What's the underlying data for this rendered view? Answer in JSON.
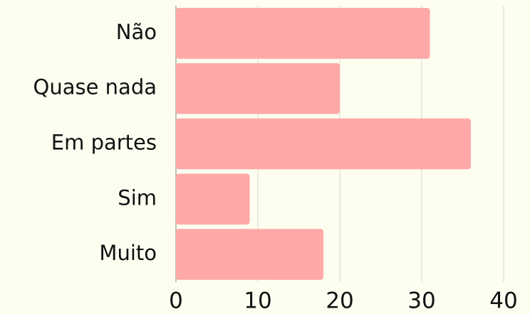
{
  "chart_data": {
    "type": "hbar",
    "categories": [
      "Não",
      "Quase nada",
      "Em partes",
      "Sim",
      "Muito"
    ],
    "values": [
      31,
      20,
      36,
      9,
      18
    ],
    "color": "#ffa8a8",
    "xlim": [
      0,
      40
    ],
    "xticks": [
      0,
      10,
      20,
      30,
      40
    ],
    "grid": true
  }
}
